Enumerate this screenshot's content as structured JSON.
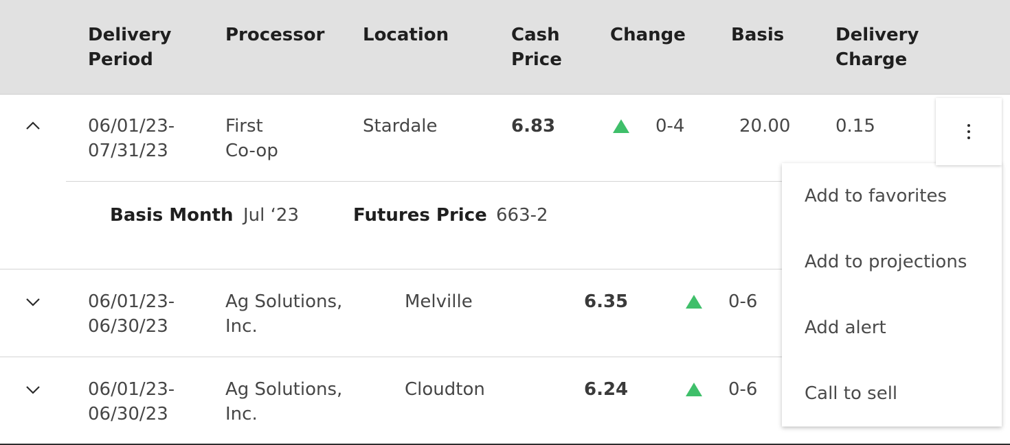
{
  "header": {
    "delivery_period": "Delivery Period",
    "processor": "Processor",
    "location": "Location",
    "cash_price": "Cash Price",
    "change": "Change",
    "basis": "Basis",
    "delivery_charge": "Delivery Charge"
  },
  "rows": [
    {
      "expanded": true,
      "period_start": "06/01/23-",
      "period_end": "07/31/23",
      "processor_line1": "First",
      "processor_line2": "Co-op",
      "location": "Stardale",
      "cash_price": "6.83",
      "change_icon": "triangle-up-icon",
      "change": "0-4",
      "basis": "20.00",
      "delivery_charge": "0.15"
    },
    {
      "expanded": false,
      "period_start": "06/01/23-",
      "period_end": "06/30/23",
      "processor_line1": "Ag Solutions,",
      "processor_line2": "Inc.",
      "location": "Melville",
      "cash_price": "6.35",
      "change_icon": "triangle-up-icon",
      "change": "0-6"
    },
    {
      "expanded": false,
      "period_start": "06/01/23-",
      "period_end": "06/30/23",
      "processor_line1": "Ag Solutions,",
      "processor_line2": "Inc.",
      "location": "Cloudton",
      "cash_price": "6.24",
      "change_icon": "triangle-up-icon",
      "change": "0-6"
    }
  ],
  "detail": {
    "basis_month_label": "Basis Month",
    "basis_month_value": "Jul ‘23",
    "futures_price_label": "Futures Price",
    "futures_price_value": "663-2"
  },
  "menu": {
    "items": [
      "Add to favorites",
      "Add to projections",
      "Add alert",
      "Call to sell"
    ]
  },
  "colors": {
    "header_bg": "#e1e1e1",
    "up_indicator": "#3fbf6a"
  }
}
